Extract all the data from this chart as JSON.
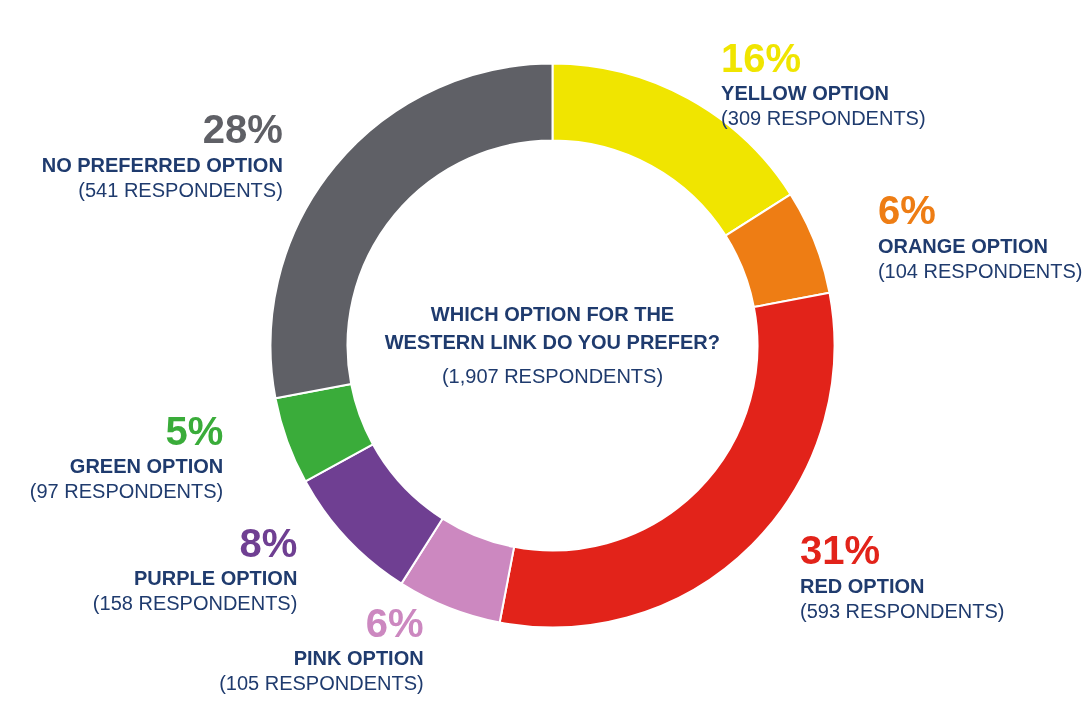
{
  "chart_data": {
    "type": "donut",
    "title": "WHICH OPTION FOR THE\nWESTERN LINK DO YOU PREFER?",
    "subtitle": "(1,907 RESPONDENTS)",
    "categories": [
      "YELLOW OPTION\n(309 RESPONDENTS)",
      "ORANGE OPTION\n(104 RESPONDENTS)",
      "RED OPTION\n(593 RESPONDENTS)",
      "PINK OPTION\n(105 RESPONDENTS)",
      "PURPLE OPTION\n(158 RESPONDENTS)",
      "GREEN OPTION\n(97 RESPONDENTS)",
      "NO PREFERRED OPTION\n(541 RESPONDENTS)"
    ],
    "values": [
      16,
      6,
      31,
      6,
      8,
      5,
      28
    ],
    "value_labels": [
      "16%",
      "6%",
      "31%",
      "6%",
      "8%",
      "5%",
      "28%"
    ],
    "colors": [
      "#f0e500",
      "#ee7d14",
      "#e2231a",
      "#cc88c0",
      "#6f3f92",
      "#3aac3a",
      "#5f6066"
    ]
  }
}
